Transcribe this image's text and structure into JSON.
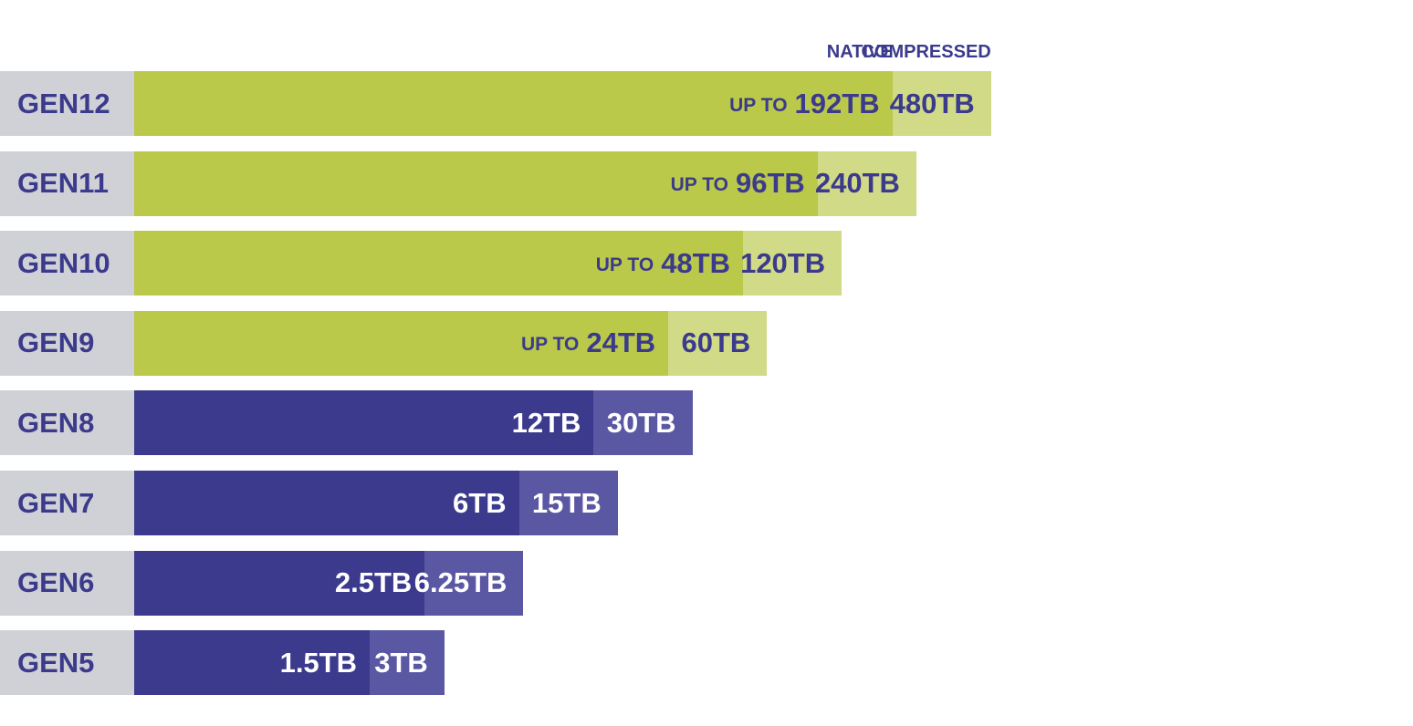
{
  "headers": {
    "native": "NATIVE",
    "compressed": "COMPRESSED"
  },
  "colors": {
    "label_bg": "#d0d1d6",
    "green_native": "#bbc94a",
    "green_compressed": "#d1da87",
    "blue_native": "#3b3a8c",
    "blue_compressed": "#5b58a3",
    "text_dark": "#3b3a8c",
    "text_light": "#ffffff"
  },
  "chart_data": {
    "type": "bar",
    "orientation": "horizontal",
    "stacked": true,
    "categories": [
      "GEN12",
      "GEN11",
      "GEN10",
      "GEN9",
      "GEN8",
      "GEN7",
      "GEN6",
      "GEN5"
    ],
    "series": [
      {
        "name": "NATIVE",
        "values": [
          192,
          96,
          48,
          24,
          12,
          6,
          2.5,
          1.5
        ],
        "labels": [
          "192TB",
          "96TB",
          "48TB",
          "24TB",
          "12TB",
          "6TB",
          "2.5TB",
          "1.5TB"
        ],
        "prefixes": [
          "UP TO",
          "UP TO",
          "UP TO",
          "UP TO",
          "",
          "",
          "",
          ""
        ]
      },
      {
        "name": "COMPRESSED",
        "values": [
          480,
          240,
          120,
          60,
          30,
          15,
          6.25,
          3
        ],
        "labels": [
          "480TB",
          "240TB",
          "120TB",
          "60TB",
          "30TB",
          "15TB",
          "6.25TB",
          "3TB"
        ]
      }
    ],
    "units": "TB",
    "scale": "log",
    "grid": false
  }
}
